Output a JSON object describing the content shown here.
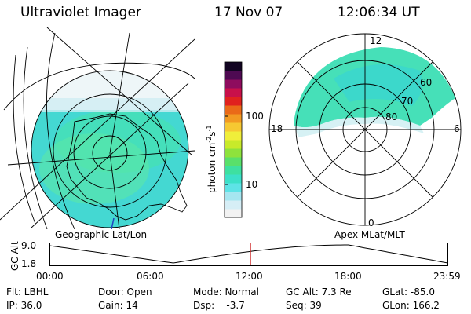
{
  "header": {
    "instrument": "Ultraviolet Imager",
    "date": "17 Nov 07",
    "time": "12:06:34 UT"
  },
  "left_panel": {
    "caption": "Geographic Lat/Lon"
  },
  "right_panel": {
    "caption": "Apex MLat/MLT",
    "mlt_labels": {
      "top": "12",
      "left": "18",
      "right": "6",
      "bottom": "0"
    },
    "lat_labels": [
      "60",
      "70",
      "80"
    ]
  },
  "colorbar": {
    "unit": "photon cm",
    "unit_sup1": "-2",
    "unit_mid": "s",
    "unit_sup2": "-1",
    "tick_labels": [
      "100",
      "10"
    ],
    "colors": [
      "#f2f2f2",
      "#d6eef6",
      "#a6e6f0",
      "#5ee3e6",
      "#3ce0c8",
      "#3ee0a0",
      "#59e06a",
      "#8ee23c",
      "#c8ea2a",
      "#f0ee3a",
      "#f6c832",
      "#f29a22",
      "#ea6a18",
      "#e0221e",
      "#c8104a",
      "#8e0c5e",
      "#4e0a52",
      "#120422"
    ]
  },
  "altitude_plot": {
    "ylabel": "GC Alt",
    "y_ticks": [
      "9.0",
      "1.8"
    ],
    "x_ticks": [
      "00:00",
      "06:00",
      "12:00",
      "18:00",
      "23:59"
    ],
    "current_time_fraction": 0.5043,
    "line_color": "#000000",
    "marker_color": "#cc2222"
  },
  "info": {
    "filter": "Flt: LBHL",
    "door": "Door: Open",
    "mode": "Mode: Normal",
    "gc_alt": "GC Alt: 7.3 Re",
    "glat": "GLat: -85.0",
    "ip": "IP: 36.0",
    "gain": "Gain: 14",
    "dsp": "Dsp:    -3.7",
    "seq": "Seq: 39",
    "glon": "GLon: 166.2"
  },
  "aurora_colors": [
    "#46e0b8",
    "#3ad6d0",
    "#5be8a6",
    "#cfeef2"
  ]
}
